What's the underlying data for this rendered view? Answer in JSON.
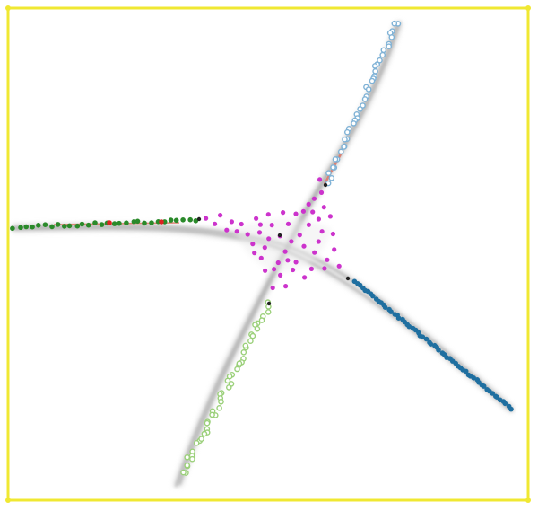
{
  "figure": {
    "frame_color": "#f0e832",
    "background": "#ffffff",
    "trunk_color": "#9a9a9a",
    "center_color": "#cc33cc",
    "branch_node_color": "#222222"
  },
  "branches": [
    {
      "id": "upper-right",
      "color": "#7fb2d6",
      "count": 40,
      "hollow": true
    },
    {
      "id": "left",
      "color": "#2a8a2a",
      "count": 30,
      "hollow": false
    },
    {
      "id": "lower-right",
      "color": "#1f6fa0",
      "count": 60,
      "hollow": false
    },
    {
      "id": "lower-left",
      "color": "#9bd07a",
      "count": 48,
      "hollow": true
    }
  ],
  "accent_colors": {
    "salmon": "#e07a6a",
    "red": "#dd2222"
  },
  "center_points": 55
}
